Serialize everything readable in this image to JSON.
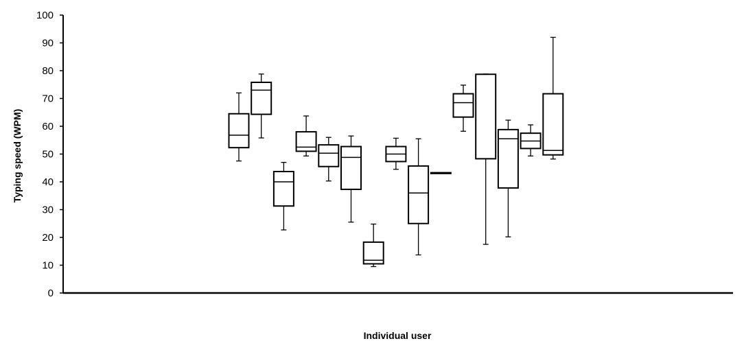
{
  "chart_data": {
    "type": "box",
    "title": "",
    "xlabel": "Individual user",
    "ylabel": "Typing speed (WPM)",
    "ylim": [
      0,
      100
    ],
    "y_ticks": [
      0,
      10,
      20,
      30,
      40,
      50,
      60,
      70,
      80,
      90,
      100
    ],
    "grid": false,
    "legend": "none",
    "colors": {
      "stroke": "#000000",
      "fill": "#ffffff"
    },
    "boxes": [
      {
        "min": 47.5,
        "q1": 52.3,
        "median": 56.8,
        "q3": 64.5,
        "max": 72.0
      },
      {
        "min": 55.8,
        "q1": 64.3,
        "median": 73.0,
        "q3": 75.8,
        "max": 78.8
      },
      {
        "min": 22.7,
        "q1": 31.3,
        "median": 40.0,
        "q3": 43.7,
        "max": 47.0
      },
      {
        "min": 49.3,
        "q1": 51.0,
        "median": 52.5,
        "q3": 58.0,
        "max": 63.7
      },
      {
        "min": 40.3,
        "q1": 45.5,
        "median": 50.3,
        "q3": 53.3,
        "max": 56.0
      },
      {
        "min": 25.5,
        "q1": 37.3,
        "median": 48.8,
        "q3": 52.7,
        "max": 56.5
      },
      {
        "min": 9.5,
        "q1": 10.5,
        "median": 11.8,
        "q3": 18.3,
        "max": 24.8
      },
      {
        "min": 44.5,
        "q1": 47.3,
        "median": 50.0,
        "q3": 52.7,
        "max": 55.7
      },
      {
        "min": 13.7,
        "q1": 25.0,
        "median": 36.0,
        "q3": 45.7,
        "max": 55.5
      },
      {
        "min": 43.0,
        "q1": 43.0,
        "median": 43.2,
        "q3": 43.3,
        "max": 43.3
      },
      {
        "min": 58.2,
        "q1": 63.3,
        "median": 68.5,
        "q3": 71.7,
        "max": 74.8
      },
      {
        "min": 17.5,
        "q1": 48.3,
        "median": 78.7,
        "q3": 78.7,
        "max": 78.8
      },
      {
        "min": 20.2,
        "q1": 37.8,
        "median": 55.5,
        "q3": 58.8,
        "max": 62.2
      },
      {
        "min": 49.3,
        "q1": 52.0,
        "median": 54.7,
        "q3": 57.5,
        "max": 60.5
      },
      {
        "min": 48.2,
        "q1": 49.7,
        "median": 51.3,
        "q3": 71.7,
        "max": 92.0
      }
    ]
  }
}
